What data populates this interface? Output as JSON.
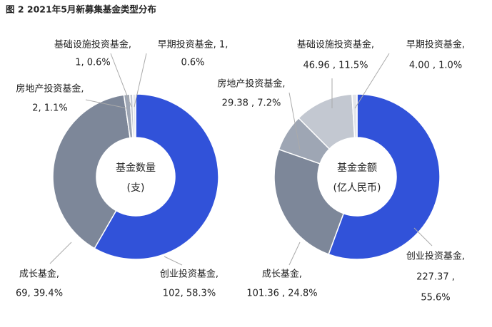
{
  "title": "图 2 2021年5月新募集基金类型分布",
  "chart_data": [
    {
      "type": "pie",
      "center_label": [
        "基金数量",
        "(支)"
      ],
      "values": [
        102,
        69,
        2,
        1,
        1
      ],
      "colors": [
        "#3152d9",
        "#7d8799",
        "#9ea6b4",
        "#c3c8d1",
        "#e3e5ea"
      ],
      "labels": [
        [
          "创业投资基金,",
          "102, 58.3%"
        ],
        [
          "成长基金,",
          "69, 39.4%"
        ],
        [
          "房地产投资基金,",
          "2, 1.1%"
        ],
        [
          "基础设施投资基金,",
          "1, 0.6%"
        ],
        [
          "早期投资基金, 1,",
          "0.6%"
        ]
      ]
    },
    {
      "type": "pie",
      "center_label": [
        "基金金额",
        "(亿人民币)"
      ],
      "values": [
        227.37,
        101.36,
        29.38,
        46.96,
        4
      ],
      "colors": [
        "#3152d9",
        "#7d8799",
        "#9ea6b4",
        "#c3c8d1",
        "#e3e5ea"
      ],
      "labels": [
        [
          "创业投资基金,",
          "227.37 ,",
          "55.6%"
        ],
        [
          "成长基金,",
          "101.36 , 24.8%"
        ],
        [
          "房地产投资基金,",
          "29.38 , 7.2%"
        ],
        [
          "基础设施投资基金,",
          "46.96 , 11.5%"
        ],
        [
          "早期投资基金,",
          "4.00 , 1.0%"
        ]
      ]
    }
  ]
}
